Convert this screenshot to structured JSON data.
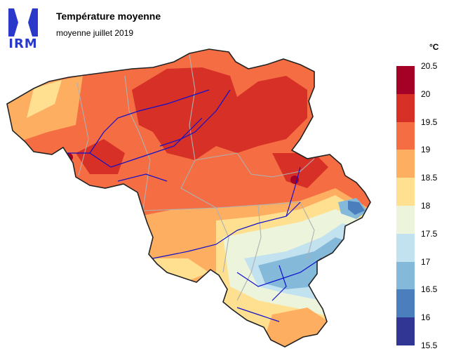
{
  "header": {
    "logo_text": "IRM",
    "title": "Température moyenne",
    "subtitle": "moyenne juillet 2019"
  },
  "legend": {
    "unit": "°C",
    "ticks": [
      "20.5",
      "20",
      "19.5",
      "19",
      "18.5",
      "18",
      "17.5",
      "17",
      "16.5",
      "16",
      "15.5"
    ],
    "colors": [
      "#a50026",
      "#d73027",
      "#f46d43",
      "#fdae61",
      "#fee090",
      "#ecf5dc",
      "#c3e2ef",
      "#85b9d9",
      "#4a7ebc",
      "#313695"
    ]
  }
}
